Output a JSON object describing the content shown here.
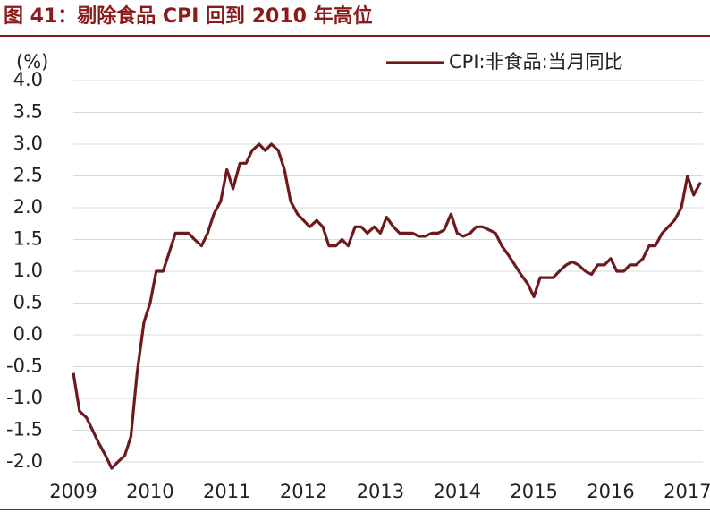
{
  "chart_data": {
    "type": "line",
    "title": "图 41：剔除食品 CPI 回到 2010 年高位",
    "y_label": "(%)",
    "legend": "upper right",
    "grid": true,
    "xlim": [
      2009,
      2017.2
    ],
    "xticks": [
      2009,
      2010,
      2011,
      2012,
      2013,
      2014,
      2015,
      2016,
      2017
    ],
    "ylim": [
      -2,
      4
    ],
    "yticks": [
      {
        "value": 4,
        "label": "4.0"
      },
      3.5,
      {
        "value": 3,
        "label": "3.0"
      },
      2.5,
      {
        "value": 2,
        "label": "2.0"
      },
      1.5,
      {
        "value": 1,
        "label": "1.0"
      },
      0.5,
      {
        "value": 0,
        "label": "0.0"
      },
      -0.5,
      {
        "value": -1,
        "label": "-1.0"
      },
      -1.5,
      {
        "value": -2,
        "label": "-2.0"
      }
    ],
    "x": [
      2009,
      2009.08,
      2009.17,
      2009.25,
      2009.33,
      2009.42,
      2009.5,
      2009.58,
      2009.67,
      2009.75,
      2009.83,
      2009.92,
      2010,
      2010.08,
      2010.17,
      2010.25,
      2010.33,
      2010.42,
      2010.5,
      2010.58,
      2010.67,
      2010.75,
      2010.83,
      2010.92,
      2011,
      2011.08,
      2011.17,
      2011.25,
      2011.33,
      2011.42,
      2011.5,
      2011.58,
      2011.67,
      2011.75,
      2011.83,
      2011.92,
      2012,
      2012.08,
      2012.17,
      2012.25,
      2012.33,
      2012.42,
      2012.5,
      2012.58,
      2012.67,
      2012.75,
      2012.83,
      2012.92,
      2013,
      2013.08,
      2013.17,
      2013.25,
      2013.33,
      2013.42,
      2013.5,
      2013.58,
      2013.67,
      2013.75,
      2013.83,
      2013.92,
      2014,
      2014.08,
      2014.17,
      2014.25,
      2014.33,
      2014.42,
      2014.5,
      2014.58,
      2014.67,
      2014.75,
      2014.83,
      2014.92,
      2015,
      2015.08,
      2015.17,
      2015.25,
      2015.33,
      2015.42,
      2015.5,
      2015.58,
      2015.67,
      2015.75,
      2015.83,
      2015.92,
      2016,
      2016.08,
      2016.17,
      2016.25,
      2016.33,
      2016.42,
      2016.5,
      2016.58,
      2016.67,
      2016.75,
      2016.83,
      2016.92,
      2017,
      2017.08,
      2017.17
    ],
    "series": [
      {
        "name": "CPI:非食品:当月同比",
        "color": "#6e1a1c",
        "values": [
          -0.6,
          -1.2,
          -1.3,
          -1.5,
          -1.7,
          -1.9,
          -2.1,
          -2.0,
          -1.9,
          -1.6,
          -0.6,
          0.2,
          0.5,
          1.0,
          1.0,
          1.3,
          1.6,
          1.6,
          1.6,
          1.5,
          1.4,
          1.6,
          1.9,
          2.1,
          2.6,
          2.3,
          2.7,
          2.7,
          2.9,
          3.0,
          2.9,
          3.0,
          2.9,
          2.6,
          2.1,
          1.9,
          1.8,
          1.7,
          1.8,
          1.7,
          1.4,
          1.4,
          1.5,
          1.4,
          1.7,
          1.7,
          1.6,
          1.7,
          1.6,
          1.85,
          1.7,
          1.6,
          1.6,
          1.6,
          1.55,
          1.55,
          1.6,
          1.6,
          1.65,
          1.9,
          1.6,
          1.55,
          1.6,
          1.7,
          1.7,
          1.65,
          1.6,
          1.4,
          1.25,
          1.1,
          0.95,
          0.8,
          0.6,
          0.9,
          0.9,
          0.9,
          1.0,
          1.1,
          1.15,
          1.1,
          1.0,
          0.95,
          1.1,
          1.1,
          1.2,
          1.0,
          1.0,
          1.1,
          1.1,
          1.2,
          1.4,
          1.4,
          1.6,
          1.7,
          1.8,
          2.0,
          2.5,
          2.2,
          2.4
        ]
      }
    ]
  }
}
